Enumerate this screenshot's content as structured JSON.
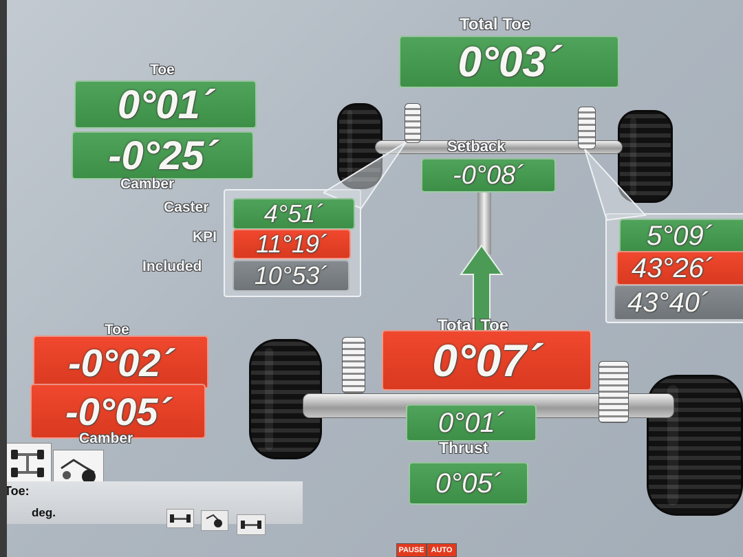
{
  "total_toe_front": {
    "label": "Total Toe",
    "value": "0°03´"
  },
  "left_front": {
    "toe_label": "Toe",
    "toe_value": "0°01´",
    "camber_value": "-0°25´",
    "camber_label": "Camber",
    "caster_label": "Caster",
    "caster_value": "4°51´",
    "kpi_label": "KPI",
    "kpi_value": "11°19´",
    "included_label": "Included",
    "included_value": "10°53´"
  },
  "setback": {
    "label": "Setback",
    "value": "-0°08´"
  },
  "right_front": {
    "caster_value": "5°09´",
    "kpi_value": "43°26´",
    "included_value": "43°40´"
  },
  "total_toe_rear": {
    "label": "Total Toe",
    "value": "0°07´"
  },
  "left_rear": {
    "toe_label": "Toe",
    "toe_value": "-0°02´",
    "camber_value": "-0°05´",
    "camber_label": "Camber"
  },
  "thrust": {
    "value": "0°01´",
    "label": "Thrust"
  },
  "rear_extra": {
    "value": "0°05´"
  },
  "status": {
    "toe_label": "Toe:",
    "unit": "deg."
  },
  "buttons": {
    "pause_label": "PAUSE",
    "auto_label": "AUTO"
  },
  "icons": {
    "vehicle_top_view": "car-top-view-icon",
    "vehicle_side_view": "car-side-view-icon",
    "front_axle": "front-axle-icon",
    "wheel_adjust": "wheel-adjust-icon",
    "rear_axle": "rear-axle-icon"
  },
  "colors": {
    "in_tolerance": "#3d8f47",
    "out_of_tolerance": "#d93a20",
    "neutral": "#6e7478"
  }
}
